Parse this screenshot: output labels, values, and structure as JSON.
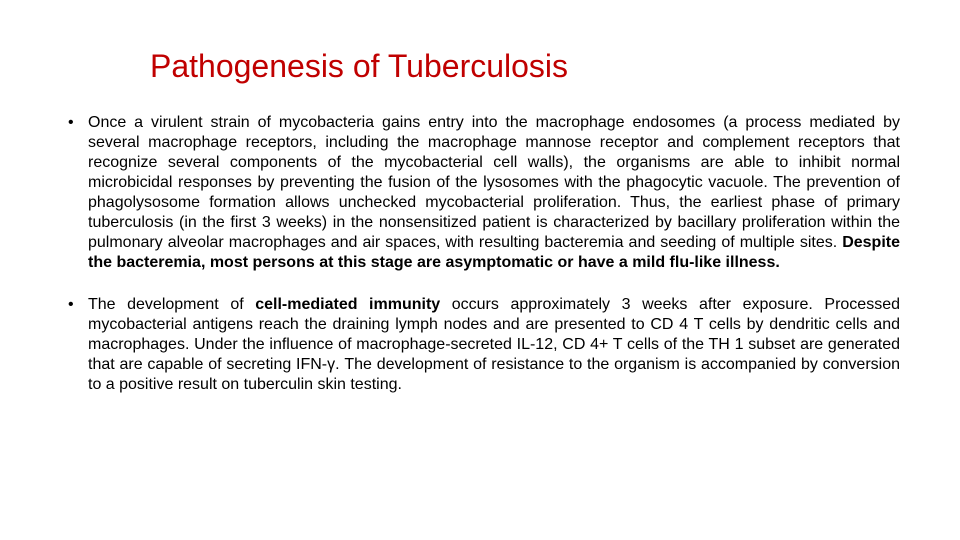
{
  "title": {
    "text": "Pathogenesis of Tuberculosis",
    "color": "#c00000",
    "fontsize": 32,
    "weight": 400
  },
  "body": {
    "color": "#000000",
    "fontsize": 16,
    "line_height": 1.25,
    "bullets": [
      {
        "runs": [
          {
            "text": "Once a virulent strain of mycobacteria gains entry into the macrophage endosomes (a process mediated by several macrophage receptors, including the macrophage mannose receptor and complement receptors that recognize several components of the mycobacterial cell walls), the organisms are able to inhibit normal microbicidal responses by preventing the fusion of the lysosomes with the phagocytic vacuole. The prevention of phagolysosome formation allows unchecked mycobacterial proliferation. Thus, the earliest phase of primary tuberculosis (in the first 3 weeks) in the nonsensitized patient is characterized by bacillary proliferation within the pulmonary alveolar macrophages and air spaces, with resulting bacteremia and seeding of multiple sites. ",
            "bold": false
          },
          {
            "text": "Despite the bacteremia, most persons at this stage are asymptomatic or have a mild flu-like illness.",
            "bold": true
          }
        ]
      },
      {
        "runs": [
          {
            "text": "The development of ",
            "bold": false
          },
          {
            "text": "cell-mediated immunity",
            "bold": true
          },
          {
            "text": " occurs approximately 3 weeks after exposure. Processed mycobacterial antigens reach the draining lymph nodes and are presented to CD 4 T cells by dendritic cells and macrophages. Under the influence of macrophage-secreted IL-12, CD 4+ T cells of the TH 1 subset are generated that are capable of secreting IFN-γ. The development of resistance to the organism is accompanied by conversion to a positive result on tuberculin skin testing.",
            "bold": false
          }
        ]
      }
    ]
  }
}
